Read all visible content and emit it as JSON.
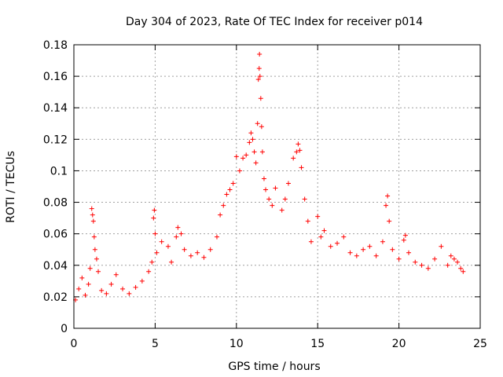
{
  "chart_data": {
    "type": "scatter",
    "title": "Day 304 of 2023, Rate Of TEC Index for receiver p014",
    "xlabel": "GPS time / hours",
    "ylabel": "ROTI / TECUs",
    "xlim": [
      0,
      25
    ],
    "ylim": [
      0,
      0.18
    ],
    "xticks": [
      0,
      5,
      10,
      15,
      20,
      25
    ],
    "xtick_labels": [
      "0",
      "5",
      "10",
      "15",
      "20",
      "25"
    ],
    "yticks": [
      0,
      0.02,
      0.04,
      0.06,
      0.08,
      0.1,
      0.12,
      0.14,
      0.16,
      0.18
    ],
    "ytick_labels": [
      "0",
      "0.02",
      "0.04",
      "0.06",
      "0.08",
      "0.1",
      "0.12",
      "0.14",
      "0.16",
      "0.18"
    ],
    "grid": true,
    "marker": "+",
    "color": "#ff0000",
    "series": [
      {
        "name": "ROTI",
        "points": [
          [
            0.1,
            0.018
          ],
          [
            0.3,
            0.025
          ],
          [
            0.5,
            0.032
          ],
          [
            0.7,
            0.021
          ],
          [
            0.9,
            0.028
          ],
          [
            1.0,
            0.038
          ],
          [
            1.1,
            0.076
          ],
          [
            1.15,
            0.072
          ],
          [
            1.2,
            0.068
          ],
          [
            1.25,
            0.058
          ],
          [
            1.3,
            0.05
          ],
          [
            1.4,
            0.044
          ],
          [
            1.5,
            0.036
          ],
          [
            1.7,
            0.024
          ],
          [
            2.0,
            0.022
          ],
          [
            2.3,
            0.028
          ],
          [
            2.6,
            0.034
          ],
          [
            3.0,
            0.025
          ],
          [
            3.4,
            0.022
          ],
          [
            3.8,
            0.026
          ],
          [
            4.2,
            0.03
          ],
          [
            4.6,
            0.036
          ],
          [
            4.8,
            0.042
          ],
          [
            4.9,
            0.07
          ],
          [
            4.95,
            0.075
          ],
          [
            5.0,
            0.06
          ],
          [
            5.1,
            0.048
          ],
          [
            5.4,
            0.055
          ],
          [
            5.8,
            0.052
          ],
          [
            6.0,
            0.042
          ],
          [
            6.3,
            0.058
          ],
          [
            6.4,
            0.064
          ],
          [
            6.6,
            0.06
          ],
          [
            6.8,
            0.05
          ],
          [
            7.2,
            0.046
          ],
          [
            7.6,
            0.048
          ],
          [
            8.0,
            0.045
          ],
          [
            8.4,
            0.05
          ],
          [
            8.8,
            0.058
          ],
          [
            9.0,
            0.072
          ],
          [
            9.2,
            0.078
          ],
          [
            9.4,
            0.085
          ],
          [
            9.6,
            0.088
          ],
          [
            9.8,
            0.092
          ],
          [
            10.0,
            0.109
          ],
          [
            10.2,
            0.1
          ],
          [
            10.4,
            0.108
          ],
          [
            10.6,
            0.11
          ],
          [
            10.8,
            0.118
          ],
          [
            10.9,
            0.124
          ],
          [
            11.0,
            0.12
          ],
          [
            11.1,
            0.112
          ],
          [
            11.2,
            0.105
          ],
          [
            11.3,
            0.13
          ],
          [
            11.35,
            0.158
          ],
          [
            11.4,
            0.165
          ],
          [
            11.42,
            0.174
          ],
          [
            11.45,
            0.16
          ],
          [
            11.5,
            0.146
          ],
          [
            11.55,
            0.128
          ],
          [
            11.6,
            0.112
          ],
          [
            11.7,
            0.095
          ],
          [
            11.8,
            0.088
          ],
          [
            12.0,
            0.082
          ],
          [
            12.2,
            0.078
          ],
          [
            12.4,
            0.089
          ],
          [
            12.8,
            0.075
          ],
          [
            13.0,
            0.082
          ],
          [
            13.2,
            0.092
          ],
          [
            13.5,
            0.108
          ],
          [
            13.7,
            0.112
          ],
          [
            13.8,
            0.117
          ],
          [
            13.9,
            0.113
          ],
          [
            14.0,
            0.102
          ],
          [
            14.2,
            0.082
          ],
          [
            14.4,
            0.068
          ],
          [
            14.6,
            0.055
          ],
          [
            15.0,
            0.071
          ],
          [
            15.2,
            0.058
          ],
          [
            15.4,
            0.062
          ],
          [
            15.8,
            0.052
          ],
          [
            16.2,
            0.054
          ],
          [
            16.6,
            0.058
          ],
          [
            17.0,
            0.048
          ],
          [
            17.4,
            0.046
          ],
          [
            17.8,
            0.05
          ],
          [
            18.2,
            0.052
          ],
          [
            18.6,
            0.046
          ],
          [
            19.0,
            0.055
          ],
          [
            19.2,
            0.078
          ],
          [
            19.3,
            0.084
          ],
          [
            19.4,
            0.068
          ],
          [
            19.6,
            0.05
          ],
          [
            20.0,
            0.044
          ],
          [
            20.3,
            0.056
          ],
          [
            20.4,
            0.059
          ],
          [
            20.6,
            0.048
          ],
          [
            21.0,
            0.042
          ],
          [
            21.4,
            0.04
          ],
          [
            21.8,
            0.038
          ],
          [
            22.2,
            0.044
          ],
          [
            22.6,
            0.052
          ],
          [
            23.0,
            0.04
          ],
          [
            23.2,
            0.046
          ],
          [
            23.4,
            0.044
          ],
          [
            23.6,
            0.042
          ],
          [
            23.8,
            0.038
          ],
          [
            23.95,
            0.036
          ]
        ]
      }
    ]
  }
}
